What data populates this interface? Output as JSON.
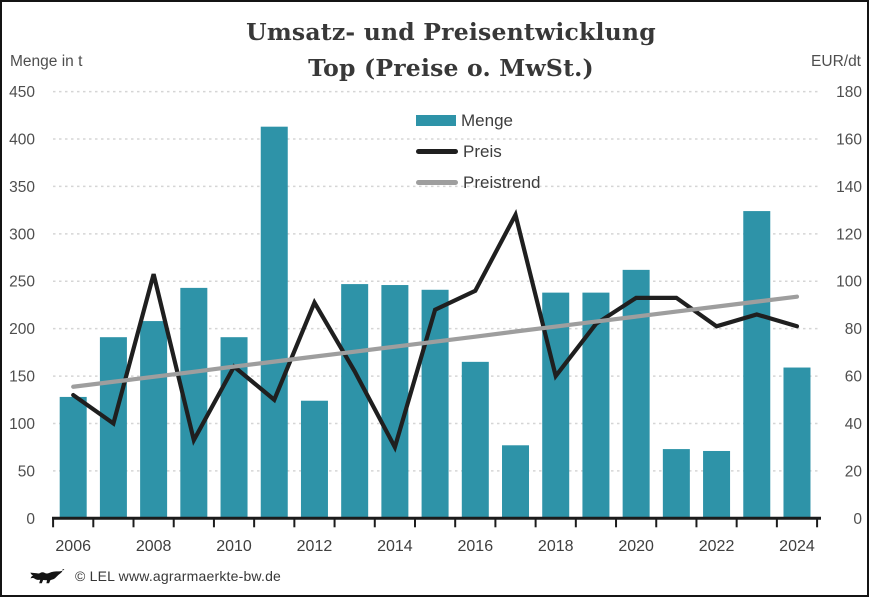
{
  "title": {
    "line1": "Umsatz- und Preisentwicklung",
    "line2": "Top (Preise o. MwSt.)"
  },
  "footer": {
    "text": "© LEL www.agrarmaerkte-bw.de",
    "logo": "bw-lion-logo"
  },
  "chart_data": {
    "type": "bar",
    "title": "Umsatz- und Preisentwicklung Top (Preise o. MwSt.)",
    "categories": [
      2006,
      2007,
      2008,
      2009,
      2010,
      2011,
      2012,
      2013,
      2014,
      2015,
      2016,
      2017,
      2018,
      2019,
      2020,
      2021,
      2022,
      2023,
      2024
    ],
    "series": [
      {
        "name": "Menge",
        "type": "bar",
        "axis": "left",
        "unit": "t",
        "color": "#2E93A8",
        "values": [
          128,
          191,
          208,
          243,
          191,
          413,
          124,
          247,
          246,
          241,
          165,
          77,
          238,
          238,
          262,
          73,
          71,
          324,
          159
        ]
      },
      {
        "name": "Preis",
        "type": "line",
        "axis": "right",
        "unit": "EUR/dt",
        "color": "#1F1F1F",
        "values": [
          52,
          40,
          103,
          33,
          64,
          50,
          91,
          62,
          30,
          88,
          96,
          128,
          60,
          82,
          93,
          93,
          81,
          86,
          81
        ]
      },
      {
        "name": "Preistrend",
        "type": "line",
        "axis": "right",
        "unit": "EUR/dt",
        "color": "#9E9E9E",
        "values": [
          55.5,
          57.6,
          59.7,
          61.8,
          64.0,
          66.1,
          68.2,
          70.3,
          72.4,
          74.5,
          76.6,
          78.8,
          80.9,
          83.0,
          85.1,
          87.2,
          89.3,
          91.4,
          93.5
        ]
      }
    ],
    "left_axis": {
      "label": "Menge in t",
      "max": 450,
      "ticks": [
        450,
        400,
        350,
        300,
        250,
        200,
        150,
        100,
        50,
        0
      ]
    },
    "right_axis": {
      "label": "EUR/dt",
      "max": 180,
      "ticks": [
        180,
        160,
        140,
        120,
        100,
        80,
        60,
        40,
        20,
        0
      ]
    },
    "x_axis": {
      "labeled_ticks": [
        2006,
        2008,
        2010,
        2012,
        2014,
        2016,
        2018,
        2020,
        2022,
        2024
      ]
    },
    "grid": true,
    "legend_position": "top-center-inside"
  }
}
